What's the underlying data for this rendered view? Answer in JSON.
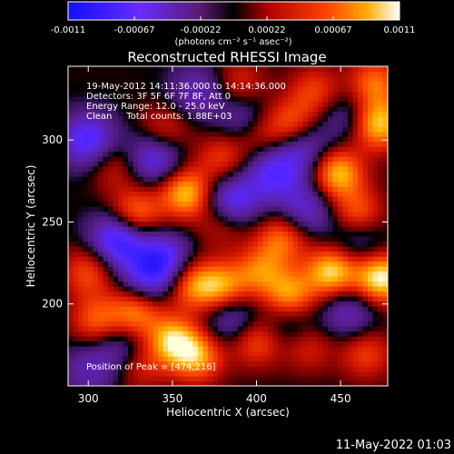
{
  "chart_data": {
    "type": "heatmap",
    "title": "Reconstructed RHESSI Image",
    "xlabel": "Heliocentric X (arcsec)",
    "ylabel": "Heliocentric Y (arcsec)",
    "xlim": [
      288,
      478
    ],
    "ylim": [
      150,
      345
    ],
    "x_ticks": [
      300,
      350,
      400,
      450
    ],
    "y_ticks": [
      200,
      250,
      300
    ],
    "colorbar": {
      "ticks": [
        "-0.0011",
        "-0.00067",
        "-0.00022",
        "0.00022",
        "0.00067",
        "0.0011"
      ],
      "range": [
        -0.0011,
        0.0011
      ],
      "unit_text": "(photons cm⁻² s⁻¹ asec⁻²)"
    },
    "annotations": [
      "19-May-2012 14:11:36.000 to 14:14:36.000",
      "Detectors: 3F 5F 6F 7F 8F, Att 0",
      "Energy Range: 12.0 - 25.0 keV",
      "Clean     Total counts: 1.88E+03"
    ],
    "peak_label": "Position of Peak = [474,216]",
    "peak": [
      474,
      216
    ],
    "blobs": [
      {
        "x": 474,
        "y": 216,
        "v": 1.0
      },
      {
        "x": 445,
        "y": 220,
        "v": 0.9
      },
      {
        "x": 420,
        "y": 205,
        "v": 0.75
      },
      {
        "x": 415,
        "y": 240,
        "v": 0.6
      },
      {
        "x": 402,
        "y": 220,
        "v": 0.55
      },
      {
        "x": 380,
        "y": 210,
        "v": 0.7
      },
      {
        "x": 362,
        "y": 212,
        "v": 0.65
      },
      {
        "x": 350,
        "y": 178,
        "v": 0.8
      },
      {
        "x": 365,
        "y": 168,
        "v": 0.7
      },
      {
        "x": 328,
        "y": 195,
        "v": 0.7
      },
      {
        "x": 305,
        "y": 190,
        "v": 0.55
      },
      {
        "x": 300,
        "y": 220,
        "v": 0.5
      },
      {
        "x": 328,
        "y": 255,
        "v": 0.7
      },
      {
        "x": 358,
        "y": 268,
        "v": 0.85
      },
      {
        "x": 380,
        "y": 290,
        "v": 0.45
      },
      {
        "x": 400,
        "y": 305,
        "v": 0.6
      },
      {
        "x": 420,
        "y": 310,
        "v": 0.55
      },
      {
        "x": 448,
        "y": 280,
        "v": 0.85
      },
      {
        "x": 460,
        "y": 255,
        "v": 0.6
      },
      {
        "x": 472,
        "y": 310,
        "v": 0.9
      },
      {
        "x": 470,
        "y": 335,
        "v": 0.6
      },
      {
        "x": 435,
        "y": 330,
        "v": 0.45
      },
      {
        "x": 400,
        "y": 178,
        "v": 0.55
      },
      {
        "x": 430,
        "y": 175,
        "v": 0.4
      },
      {
        "x": 465,
        "y": 170,
        "v": 0.45
      },
      {
        "x": 380,
        "y": 250,
        "v": 0.4
      },
      {
        "x": 315,
        "y": 285,
        "v": 0.35
      },
      {
        "x": 345,
        "y": 305,
        "v": 0.45
      },
      {
        "x": 330,
        "y": 162,
        "v": 0.35
      },
      {
        "x": 390,
        "y": 335,
        "v": 0.35
      }
    ],
    "negatives": [
      {
        "x": 318,
        "y": 240,
        "v": 0.95
      },
      {
        "x": 300,
        "y": 300,
        "v": 0.8
      },
      {
        "x": 340,
        "y": 290,
        "v": 0.75
      },
      {
        "x": 345,
        "y": 228,
        "v": 0.7
      },
      {
        "x": 385,
        "y": 262,
        "v": 0.8
      },
      {
        "x": 395,
        "y": 310,
        "v": 0.7
      },
      {
        "x": 410,
        "y": 280,
        "v": 0.65
      },
      {
        "x": 430,
        "y": 258,
        "v": 0.55
      },
      {
        "x": 428,
        "y": 295,
        "v": 0.55
      },
      {
        "x": 460,
        "y": 240,
        "v": 0.45
      },
      {
        "x": 335,
        "y": 215,
        "v": 0.55
      },
      {
        "x": 320,
        "y": 175,
        "v": 0.45
      },
      {
        "x": 385,
        "y": 192,
        "v": 0.55
      },
      {
        "x": 420,
        "y": 188,
        "v": 0.45
      },
      {
        "x": 455,
        "y": 195,
        "v": 0.5
      },
      {
        "x": 300,
        "y": 160,
        "v": 0.4
      },
      {
        "x": 365,
        "y": 330,
        "v": 0.45
      },
      {
        "x": 455,
        "y": 315,
        "v": 0.4
      }
    ]
  },
  "footer_timestamp": "11-May-2022 01:03"
}
